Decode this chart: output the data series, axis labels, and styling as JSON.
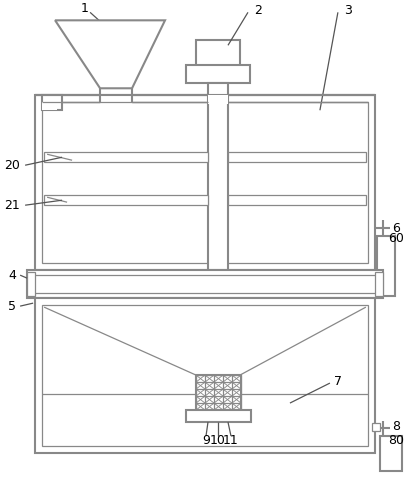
{
  "bg_color": "#ffffff",
  "line_color": "#888888",
  "line_width": 1.5,
  "thin_line": 0.9,
  "label_color": "#000000",
  "label_fontsize": 9,
  "figsize": [
    4.06,
    5.03
  ],
  "dpi": 100
}
